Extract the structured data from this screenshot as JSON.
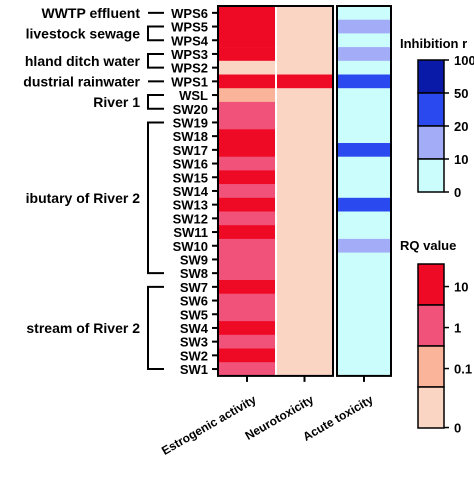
{
  "chart_data": {
    "type": "heatmap",
    "rows": [
      "WPS6",
      "WPS5",
      "WPS4",
      "WPS3",
      "WPS2",
      "WPS1",
      "WSL",
      "SW20",
      "SW19",
      "SW18",
      "SW17",
      "SW16",
      "SW15",
      "SW14",
      "SW13",
      "SW12",
      "SW11",
      "SW10",
      "SW9",
      "SW8",
      "SW7",
      "SW6",
      "SW5",
      "SW4",
      "SW3",
      "SW2",
      "SW1"
    ],
    "columns": [
      "Estrogenic activity",
      "Neurotoxicity",
      "Acute toxicity"
    ],
    "groups": [
      {
        "label": "WWTP effluent",
        "rows": [
          "WPS6"
        ]
      },
      {
        "label": "livestock sewage",
        "rows": [
          "WPS5",
          "WPS4"
        ]
      },
      {
        "label": "hland ditch water",
        "rows": [
          "WPS3",
          "WPS2"
        ]
      },
      {
        "label": "dustrial rainwater",
        "rows": [
          "WPS1"
        ]
      },
      {
        "label": "River 1",
        "rows": [
          "WSL",
          "SW20"
        ]
      },
      {
        "label": "ibutary of River 2",
        "rows": [
          "SW19",
          "SW18",
          "SW17",
          "SW16",
          "SW15",
          "SW14",
          "SW13",
          "SW12",
          "SW11",
          "SW10",
          "SW9",
          "SW8"
        ]
      },
      {
        "label": "stream of River 2",
        "rows": [
          "SW7",
          "SW6",
          "SW5",
          "SW4",
          "SW3",
          "SW2",
          "SW1"
        ]
      }
    ],
    "rq_classes": [
      "<0.1",
      "0.1-1",
      "1-10",
      ">10"
    ],
    "rq_colors": [
      "#fbd5c3",
      "#f9b49a",
      "#f0527a",
      "#ee0a25"
    ],
    "estrogenic_rq_class": [
      3,
      3,
      3,
      3,
      0,
      3,
      1,
      2,
      2,
      3,
      3,
      2,
      3,
      2,
      3,
      2,
      3,
      2,
      2,
      2,
      3,
      2,
      2,
      3,
      2,
      3,
      2
    ],
    "neurotoxicity_rq_class": [
      0,
      0,
      0,
      0,
      0,
      3,
      0,
      0,
      0,
      0,
      0,
      0,
      0,
      0,
      0,
      0,
      0,
      0,
      0,
      0,
      0,
      0,
      0,
      0,
      0,
      0,
      0
    ],
    "inhibition_classes": [
      "0-10",
      "10-20",
      "20-50",
      "50-100"
    ],
    "inhibition_colors": [
      "#ccfdfd",
      "#a3acf7",
      "#2a4af0",
      "#0a1aa8"
    ],
    "acute_inhibition_class": [
      0,
      1,
      0,
      1,
      0,
      2,
      0,
      0,
      0,
      0,
      2,
      0,
      0,
      0,
      2,
      0,
      0,
      1,
      0,
      0,
      0,
      0,
      0,
      0,
      0,
      0,
      0
    ],
    "inhibition_legend": {
      "title": "Inhibition r",
      "ticks": [
        "100",
        "50",
        "20",
        "10",
        "0"
      ]
    },
    "rq_legend": {
      "title": "RQ value",
      "ticks": [
        "10",
        "1",
        "0.1",
        "0"
      ]
    }
  }
}
